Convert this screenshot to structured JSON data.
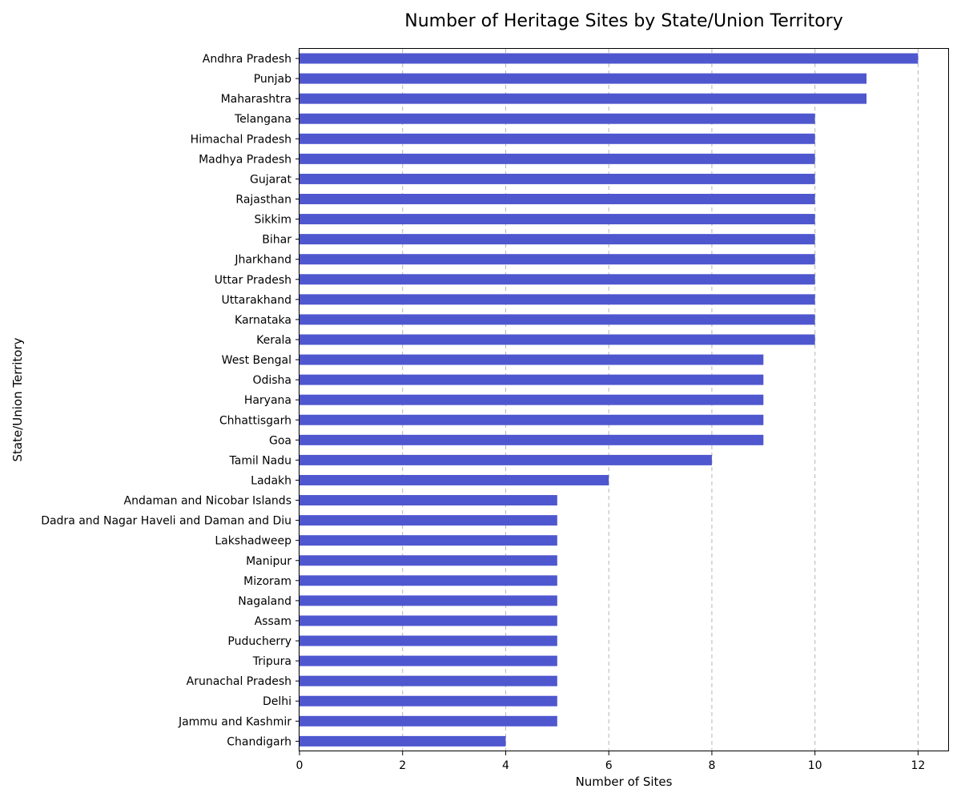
{
  "chart_data": {
    "type": "bar",
    "orientation": "horizontal",
    "title": "Number of Heritage Sites by State/Union Territory",
    "xlabel": "Number of Sites",
    "ylabel": "State/Union Territory",
    "xlim": [
      0,
      12.6
    ],
    "xticks": [
      0,
      2,
      4,
      6,
      8,
      10,
      12
    ],
    "grid": "x-dashed",
    "bar_color": "#4f57cf",
    "categories": [
      "Andhra Pradesh",
      "Punjab",
      "Maharashtra",
      "Telangana",
      "Himachal Pradesh",
      "Madhya Pradesh",
      "Gujarat",
      "Rajasthan",
      "Sikkim",
      "Bihar",
      "Jharkhand",
      "Uttar Pradesh",
      "Uttarakhand",
      "Karnataka",
      "Kerala",
      "West Bengal",
      "Odisha",
      "Haryana",
      "Chhattisgarh",
      "Goa",
      "Tamil Nadu",
      "Ladakh",
      "Andaman and Nicobar Islands",
      "Dadra and Nagar Haveli and Daman and Diu",
      "Lakshadweep",
      "Manipur",
      "Mizoram",
      "Nagaland",
      "Assam",
      "Puducherry",
      "Tripura",
      "Arunachal Pradesh",
      "Delhi",
      "Jammu and Kashmir",
      "Chandigarh"
    ],
    "values": [
      12,
      11,
      11,
      10,
      10,
      10,
      10,
      10,
      10,
      10,
      10,
      10,
      10,
      10,
      10,
      9,
      9,
      9,
      9,
      9,
      8,
      6,
      5,
      5,
      5,
      5,
      5,
      5,
      5,
      5,
      5,
      5,
      5,
      5,
      4
    ]
  }
}
